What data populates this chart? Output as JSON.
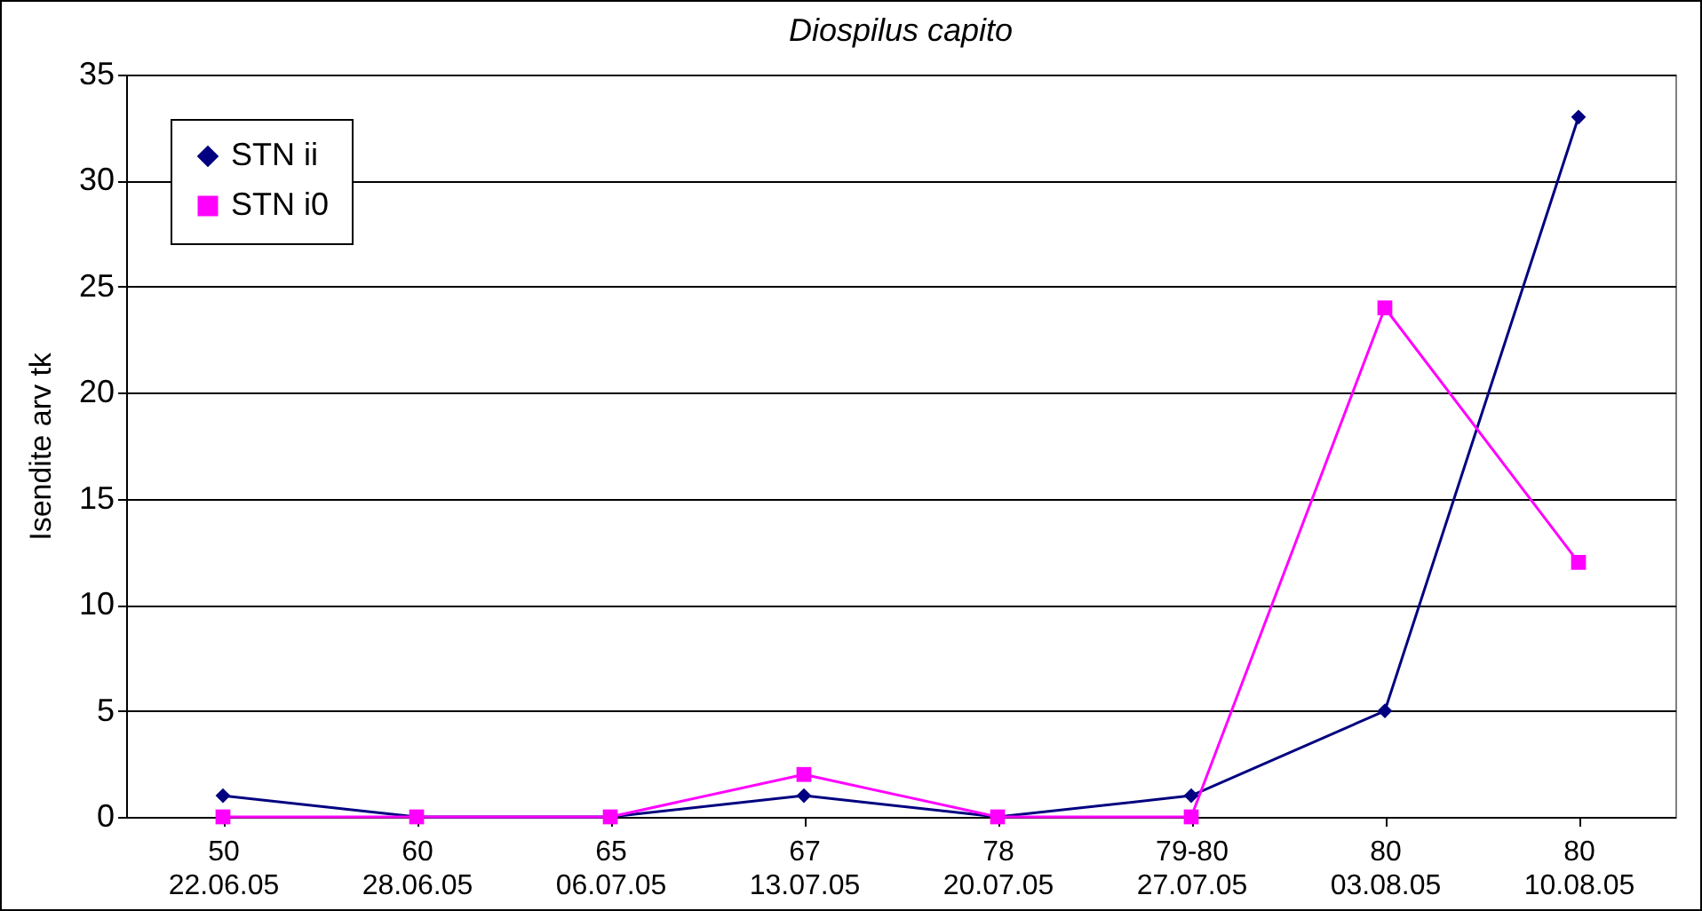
{
  "chart_data": {
    "type": "line",
    "title": "Diospilus capito",
    "ylabel": "Isendite arv tk",
    "categories": [
      "50\n22.06.05",
      "60\n28.06.05",
      "65\n06.07.05",
      "67\n13.07.05",
      "78\n20.07.05",
      "79-80\n27.07.05",
      "80\n03.08.05",
      "80\n10.08.05"
    ],
    "series": [
      {
        "name": "STN ii",
        "color": "#000080",
        "marker": "diamond",
        "values": [
          1,
          0,
          0,
          1,
          0,
          1,
          5,
          33
        ]
      },
      {
        "name": "STN i0",
        "color": "#ff00ff",
        "marker": "square",
        "values": [
          0,
          0,
          0,
          2,
          0,
          0,
          24,
          12
        ]
      }
    ],
    "ylim": [
      0,
      35
    ],
    "yticks": [
      0,
      5,
      10,
      15,
      20,
      25,
      30,
      35
    ],
    "grid": "y",
    "legend": "top left",
    "line_style": "solid"
  }
}
